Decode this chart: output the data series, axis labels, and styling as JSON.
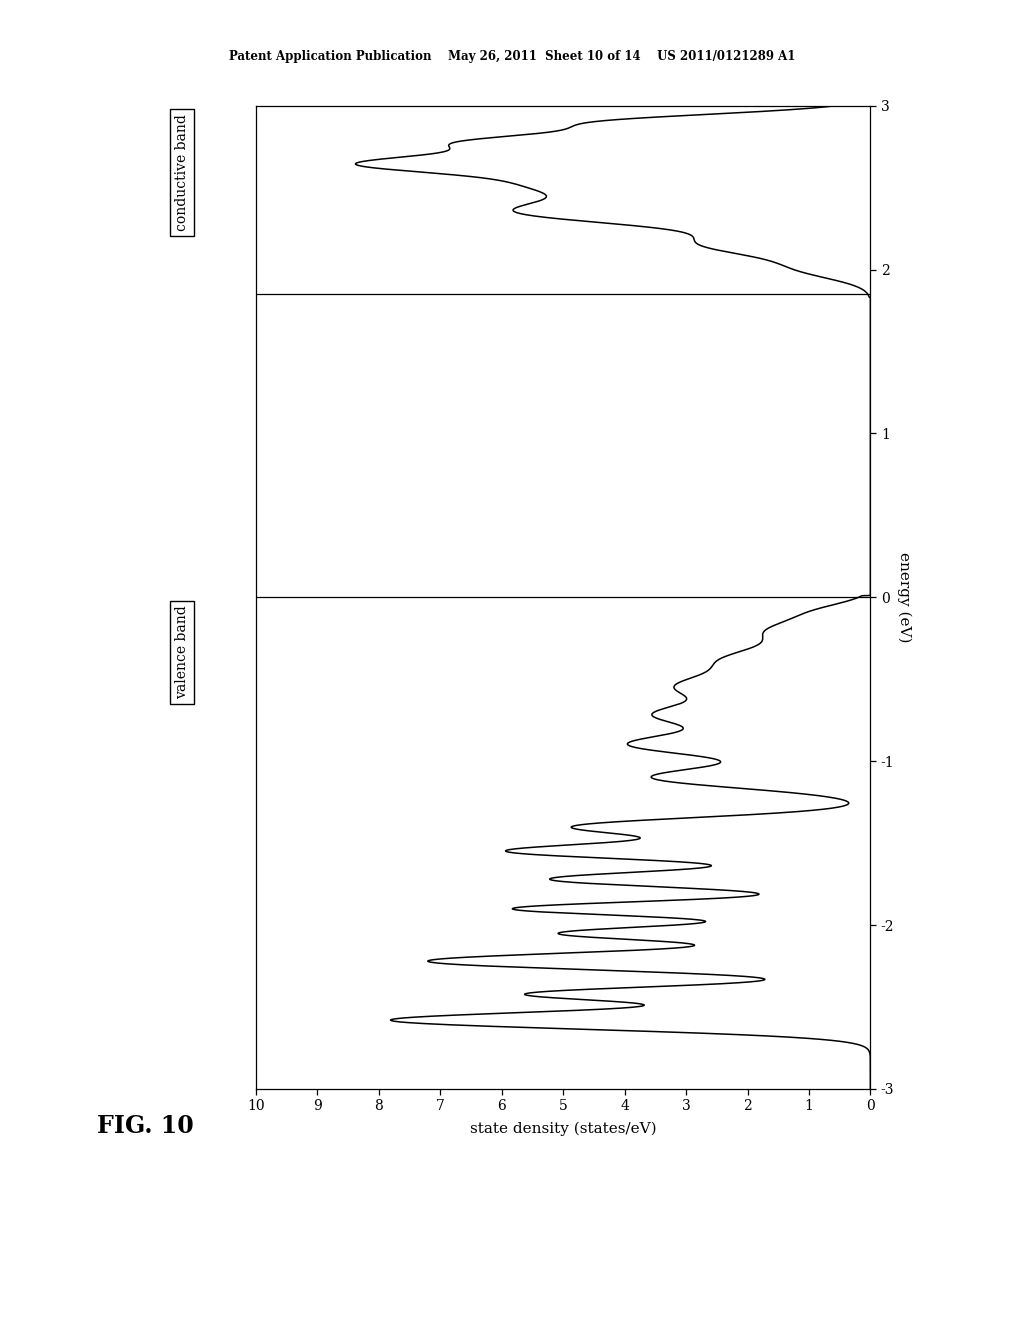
{
  "title": "FIG. 10",
  "xlabel_rotated": "state density (states/eV)",
  "ylabel_rotated": "energy (eV)",
  "energy_min": -3,
  "energy_max": 3,
  "dos_min": 0,
  "dos_max": 10,
  "hline1": 0.0,
  "hline2": 1.85,
  "valence_band_label": "valence band",
  "conductive_band_label": "conductive band",
  "background_color": "#ffffff",
  "line_color": "#000000",
  "header_text": "Patent Application Publication    May 26, 2011  Sheet 10 of 14    US 2011/0121289 A1"
}
